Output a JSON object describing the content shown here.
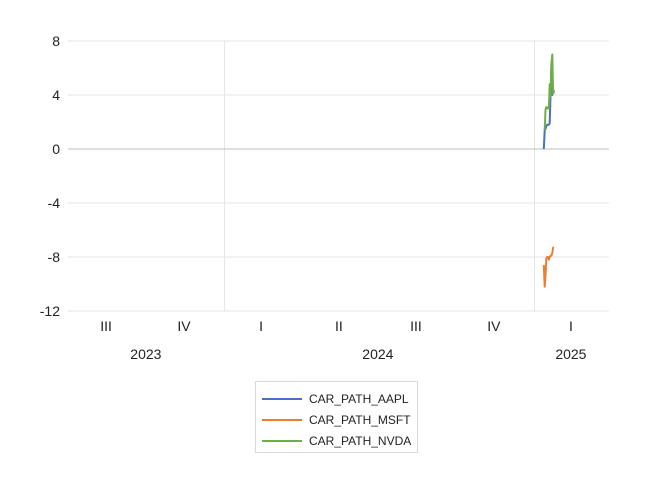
{
  "chart_data": {
    "type": "line",
    "title": "",
    "xlabel": "",
    "ylabel": "",
    "ylim": [
      -12,
      8
    ],
    "y_ticks": [
      8,
      4,
      0,
      -4,
      -8,
      -12
    ],
    "grid": true,
    "legend_position": "bottom",
    "x_axis": {
      "quarter_labels": [
        {
          "label": "III",
          "date": "2023-08-15"
        },
        {
          "label": "IV",
          "date": "2023-11-15"
        },
        {
          "label": "I",
          "date": "2024-02-14"
        },
        {
          "label": "II",
          "date": "2024-05-16"
        },
        {
          "label": "III",
          "date": "2024-08-15"
        },
        {
          "label": "IV",
          "date": "2024-11-15"
        },
        {
          "label": "I",
          "date": "2025-02-14"
        }
      ],
      "year_labels": [
        {
          "label": "2023",
          "date": "2023-10-01"
        },
        {
          "label": "2024",
          "date": "2024-07-01"
        },
        {
          "label": "2025",
          "date": "2025-02-14"
        }
      ],
      "vgrid_dates": [
        "2024-01-01",
        "2025-01-01"
      ],
      "range": [
        "2023-07-01",
        "2025-03-31"
      ]
    },
    "series": [
      {
        "name": "CAR_PATH_AAPL",
        "color": "#4472C4",
        "points": [
          [
            "2025-01-13",
            0.0
          ],
          [
            "2025-01-14",
            1.4
          ],
          [
            "2025-01-15",
            1.5
          ],
          [
            "2025-01-16",
            1.7
          ],
          [
            "2025-01-17",
            1.8
          ],
          [
            "2025-01-18",
            1.8
          ],
          [
            "2025-01-19",
            1.8
          ],
          [
            "2025-01-20",
            1.9
          ],
          [
            "2025-01-21",
            4.2
          ],
          [
            "2025-01-22",
            6.2
          ],
          [
            "2025-01-23",
            4.0
          ],
          [
            "2025-01-24",
            4.4
          ],
          [
            "2025-01-25",
            4.2
          ]
        ]
      },
      {
        "name": "CAR_PATH_MSFT",
        "color": "#ED7D31",
        "points": [
          [
            "2025-01-13",
            -8.6
          ],
          [
            "2025-01-14",
            -10.2
          ],
          [
            "2025-01-15",
            -9.4
          ],
          [
            "2025-01-16",
            -8.1
          ],
          [
            "2025-01-17",
            -8.0
          ],
          [
            "2025-01-18",
            -8.0
          ],
          [
            "2025-01-19",
            -8.2
          ],
          [
            "2025-01-20",
            -8.0
          ],
          [
            "2025-01-21",
            -7.9
          ],
          [
            "2025-01-22",
            -7.9
          ],
          [
            "2025-01-23",
            -7.7
          ],
          [
            "2025-01-24",
            -7.3
          ],
          [
            "2025-01-25",
            -7.3
          ]
        ]
      },
      {
        "name": "CAR_PATH_NVDA",
        "color": "#70AD47",
        "points": [
          [
            "2025-01-14",
            1.4
          ],
          [
            "2025-01-15",
            2.9
          ],
          [
            "2025-01-16",
            3.1
          ],
          [
            "2025-01-17",
            3.0
          ],
          [
            "2025-01-18",
            3.1
          ],
          [
            "2025-01-19",
            3.0
          ],
          [
            "2025-01-20",
            4.8
          ],
          [
            "2025-01-21",
            3.9
          ],
          [
            "2025-01-22",
            6.3
          ],
          [
            "2025-01-23",
            7.0
          ],
          [
            "2025-01-24",
            4.1
          ],
          [
            "2025-01-25",
            4.2
          ]
        ]
      }
    ]
  }
}
